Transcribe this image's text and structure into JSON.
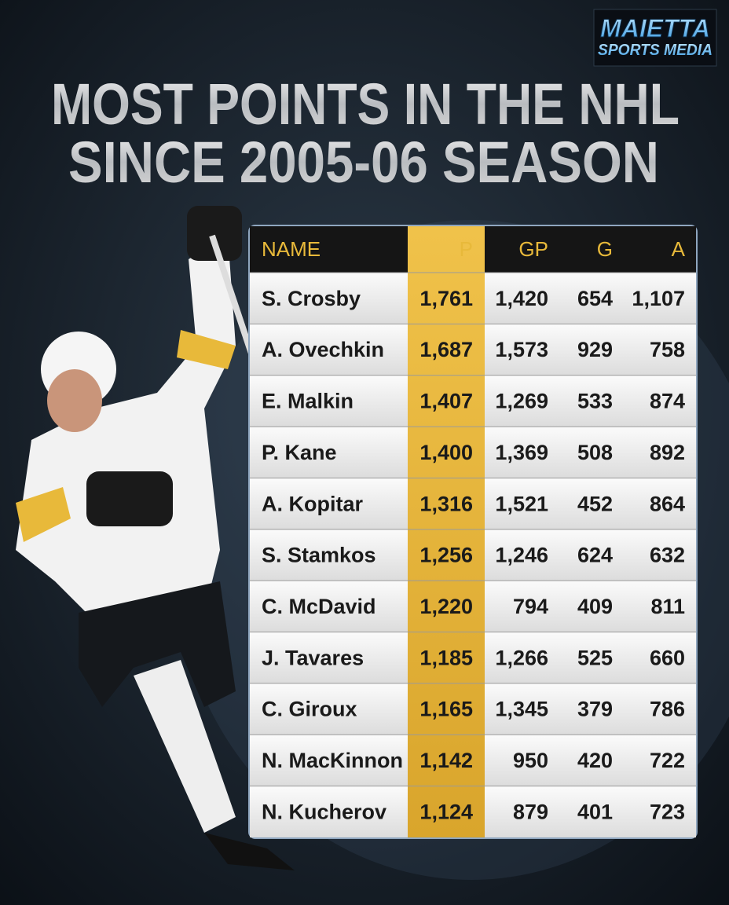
{
  "logo": {
    "line1": "MAIETTA",
    "line2": "SPORTS MEDIA"
  },
  "title": {
    "line1": "MOST POINTS IN THE NHL",
    "line2": "SINCE 2005-06 SEASON"
  },
  "table": {
    "header": [
      "NAME",
      "P",
      "GP",
      "G",
      "A"
    ],
    "rows": [
      [
        "S. Crosby",
        "1,761",
        "1,420",
        "654",
        "1,107"
      ],
      [
        "A. Ovechkin",
        "1,687",
        "1,573",
        "929",
        "758"
      ],
      [
        "E. Malkin",
        "1,407",
        "1,269",
        "533",
        "874"
      ],
      [
        "P. Kane",
        "1,400",
        "1,369",
        "508",
        "892"
      ],
      [
        "A. Kopitar",
        "1,316",
        "1,521",
        "452",
        "864"
      ],
      [
        "S. Stamkos",
        "1,256",
        "1,246",
        "624",
        "632"
      ],
      [
        "C. McDavid",
        "1,220",
        "794",
        "409",
        "811"
      ],
      [
        "J. Tavares",
        "1,185",
        "1,266",
        "525",
        "660"
      ],
      [
        "C. Giroux",
        "1,165",
        "1,345",
        "379",
        "786"
      ],
      [
        "N. MacKinnon",
        "1,142",
        "950",
        "420",
        "722"
      ],
      [
        "N. Kucherov",
        "1,124",
        "879",
        "401",
        "723"
      ]
    ]
  }
}
